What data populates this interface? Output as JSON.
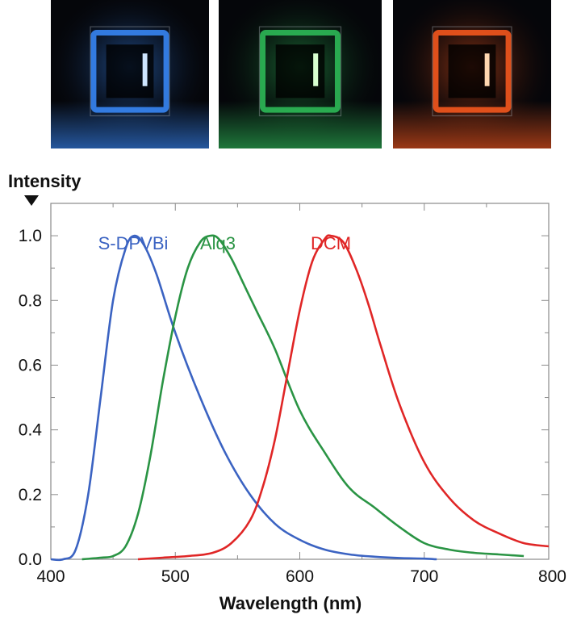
{
  "photos": [
    {
      "name": "blue",
      "glow": "#3a8cff",
      "core": "#cfe6ff"
    },
    {
      "name": "green",
      "glow": "#2fc25a",
      "core": "#d8ffd0"
    },
    {
      "name": "red",
      "glow": "#ff5a1e",
      "core": "#ffd7b0"
    }
  ],
  "chart_data": {
    "type": "line",
    "ylabel": "Intensity",
    "xlabel": "Wavelength (nm)",
    "xlim": [
      400,
      800
    ],
    "ylim": [
      0,
      1.1
    ],
    "x_ticks": [
      400,
      500,
      600,
      700,
      800
    ],
    "y_ticks": [
      0.0,
      0.2,
      0.4,
      0.6,
      0.8,
      1.0
    ],
    "x_tick_labels": [
      "400",
      "500",
      "600",
      "700",
      "800"
    ],
    "y_tick_labels": [
      "0.0",
      "0.2",
      "0.4",
      "0.6",
      "0.8",
      "1.0"
    ],
    "grid": false,
    "series": [
      {
        "name": "S-DPVBi",
        "color": "#3b63c2",
        "x": [
          400,
          410,
          420,
          430,
          440,
          450,
          460,
          467,
          475,
          485,
          500,
          520,
          540,
          560,
          580,
          600,
          620,
          640,
          660,
          680,
          700,
          710
        ],
        "y": [
          0.0,
          0.0,
          0.03,
          0.2,
          0.5,
          0.8,
          0.96,
          1.0,
          0.97,
          0.88,
          0.7,
          0.5,
          0.33,
          0.2,
          0.11,
          0.06,
          0.03,
          0.015,
          0.008,
          0.004,
          0.002,
          0.0
        ]
      },
      {
        "name": "Alq3",
        "color": "#2a9444",
        "x": [
          425,
          440,
          450,
          460,
          470,
          480,
          490,
          500,
          510,
          520,
          528,
          535,
          545,
          555,
          565,
          580,
          600,
          620,
          640,
          660,
          680,
          700,
          720,
          740,
          760,
          780
        ],
        "y": [
          0.0,
          0.005,
          0.01,
          0.04,
          0.14,
          0.32,
          0.55,
          0.75,
          0.9,
          0.98,
          1.0,
          0.99,
          0.93,
          0.85,
          0.77,
          0.65,
          0.46,
          0.33,
          0.22,
          0.16,
          0.1,
          0.05,
          0.03,
          0.02,
          0.015,
          0.01
        ]
      },
      {
        "name": "DCM",
        "color": "#e02626",
        "x": [
          470,
          490,
          510,
          530,
          545,
          560,
          570,
          580,
          590,
          600,
          610,
          620,
          625,
          635,
          645,
          655,
          665,
          680,
          700,
          720,
          740,
          760,
          780,
          800
        ],
        "y": [
          0.0,
          0.005,
          0.01,
          0.02,
          0.05,
          0.12,
          0.22,
          0.37,
          0.57,
          0.77,
          0.92,
          0.99,
          1.0,
          0.98,
          0.9,
          0.79,
          0.66,
          0.48,
          0.3,
          0.19,
          0.12,
          0.08,
          0.05,
          0.04
        ]
      }
    ]
  }
}
